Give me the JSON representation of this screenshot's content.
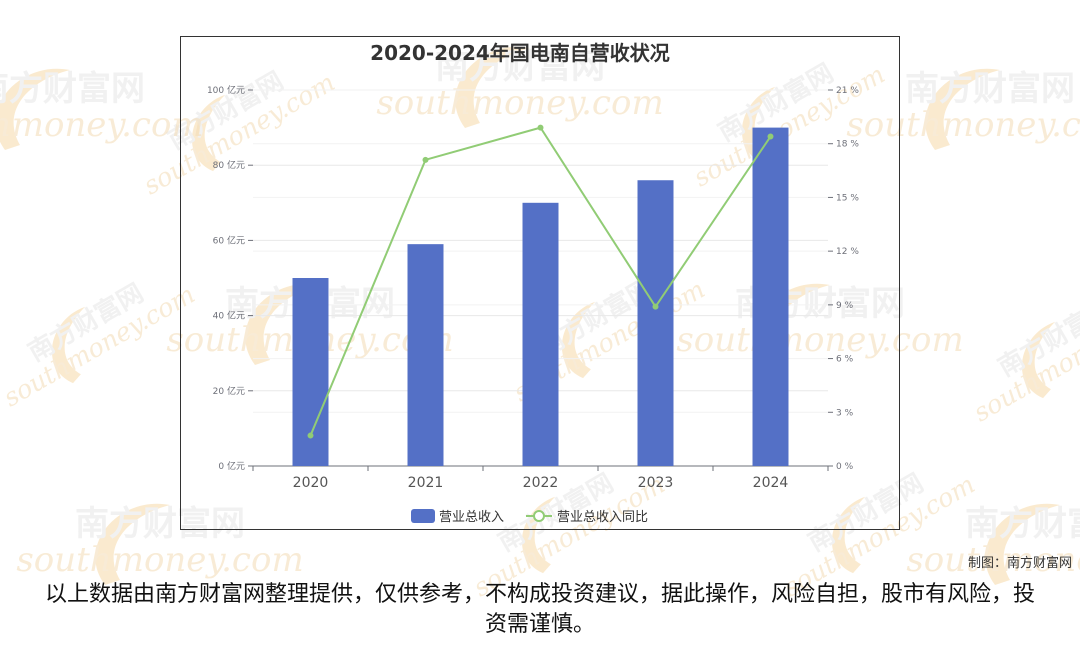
{
  "watermark": {
    "brand_cn": "南方财富网",
    "brand_en": "southmoney.com"
  },
  "chart_data": {
    "type": "bar",
    "title": "2020-2024年国电南自营收状况",
    "categories": [
      "2020",
      "2021",
      "2022",
      "2023",
      "2024"
    ],
    "series": [
      {
        "name": "营业总收入",
        "type": "bar",
        "axis": "left",
        "color": "#5470c6",
        "values": [
          50,
          59,
          70,
          76,
          90
        ]
      },
      {
        "name": "营业总收入同比",
        "type": "line",
        "axis": "right",
        "color": "#91cc75",
        "values": [
          1.7,
          17.1,
          18.9,
          8.9,
          18.4
        ]
      }
    ],
    "y_left": {
      "min": 0,
      "max": 100,
      "ticks": [
        0,
        20,
        40,
        60,
        80,
        100
      ],
      "tick_labels": [
        "0 亿元",
        "20 亿元",
        "40 亿元",
        "60 亿元",
        "80 亿元",
        "100 亿元"
      ]
    },
    "y_right": {
      "min": 0,
      "max": 21,
      "ticks": [
        0,
        3,
        6,
        9,
        12,
        15,
        18,
        21
      ],
      "tick_labels": [
        "0 %",
        "3 %",
        "6 %",
        "9 %",
        "12 %",
        "15 %",
        "18 %",
        "21 %"
      ]
    },
    "grid": true,
    "legend_position": "bottom"
  },
  "credit": "制图：南方财富网",
  "disclaimer": "以上数据由南方财富网整理提供，仅供参考，不构成投资建议，据此操作，风险自担，股市有风险，投资需谨慎。"
}
